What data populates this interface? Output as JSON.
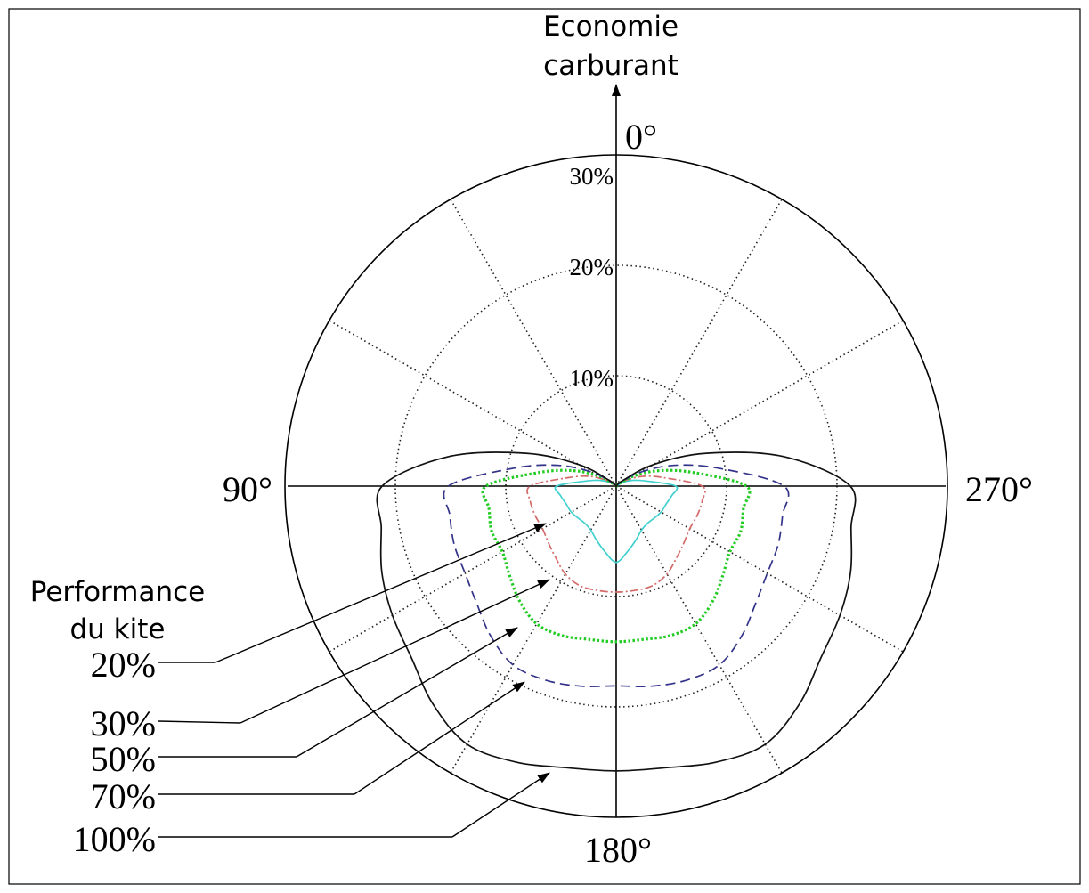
{
  "chart_data": {
    "type": "line",
    "subtype": "polar",
    "title": "",
    "radial_axis": {
      "label_lines": [
        "Economie",
        "carburant"
      ],
      "unit": "%",
      "range": [
        0,
        30
      ],
      "ticks": [
        10,
        20,
        30
      ],
      "tick_labels": [
        "10%",
        "20%",
        "30%"
      ]
    },
    "angular_axis": {
      "zero": "top",
      "direction": "counterclockwise",
      "major_labels": [
        {
          "angle": 0,
          "text": "0°"
        },
        {
          "angle": 90,
          "text": "90°"
        },
        {
          "angle": 180,
          "text": "180°"
        },
        {
          "angle": 270,
          "text": "270°"
        }
      ],
      "gridline_step_deg": 30
    },
    "legend": {
      "title_lines": [
        "Performance",
        "du kite"
      ],
      "placement": "left"
    },
    "theta": [
      0,
      10,
      20,
      30,
      40,
      50,
      60,
      70,
      80,
      90,
      100,
      110,
      120,
      130,
      140,
      150,
      160,
      170,
      180
    ],
    "series": [
      {
        "name": "20%",
        "color": "#40d0d0",
        "dash": "solid",
        "r": [
          0,
          0,
          0,
          0,
          0,
          0,
          0.7,
          1.5,
          2.7,
          5.4,
          5.1,
          4.8,
          4.7,
          4.5,
          4.4,
          4.6,
          5.2,
          6.0,
          6.9
        ]
      },
      {
        "name": "30%",
        "color": "#d46a6a",
        "dash": "dashdot",
        "r": [
          0,
          0,
          0,
          0,
          0,
          0.1,
          1.1,
          2.6,
          4.4,
          7.8,
          7.9,
          7.8,
          7.7,
          8.0,
          8.5,
          9.2,
          9.6,
          9.6,
          9.6
        ]
      },
      {
        "name": "50%",
        "color": "#22cc22",
        "dash": "dotted",
        "r": [
          0,
          0,
          0,
          0,
          0,
          0.4,
          1.8,
          4.1,
          7.1,
          11.8,
          11.7,
          12.0,
          11.9,
          12.6,
          13.6,
          14.4,
          14.4,
          14.1,
          14.1
        ]
      },
      {
        "name": "70%",
        "color": "#33338a",
        "dash": "dashed",
        "r": [
          0,
          0,
          0,
          0,
          0,
          0.5,
          2.5,
          5.5,
          9.4,
          15.2,
          15.3,
          15.6,
          15.8,
          16.5,
          17.7,
          18.7,
          18.7,
          18.4,
          18.1
        ]
      },
      {
        "name": "100%",
        "color": "#111111",
        "dash": "solid",
        "r": [
          0,
          0,
          0,
          0,
          0,
          0.8,
          3.9,
          8.7,
          15.4,
          21.2,
          21.6,
          22.6,
          23.4,
          24.2,
          25.8,
          27.0,
          26.6,
          25.9,
          25.8
        ]
      }
    ]
  }
}
